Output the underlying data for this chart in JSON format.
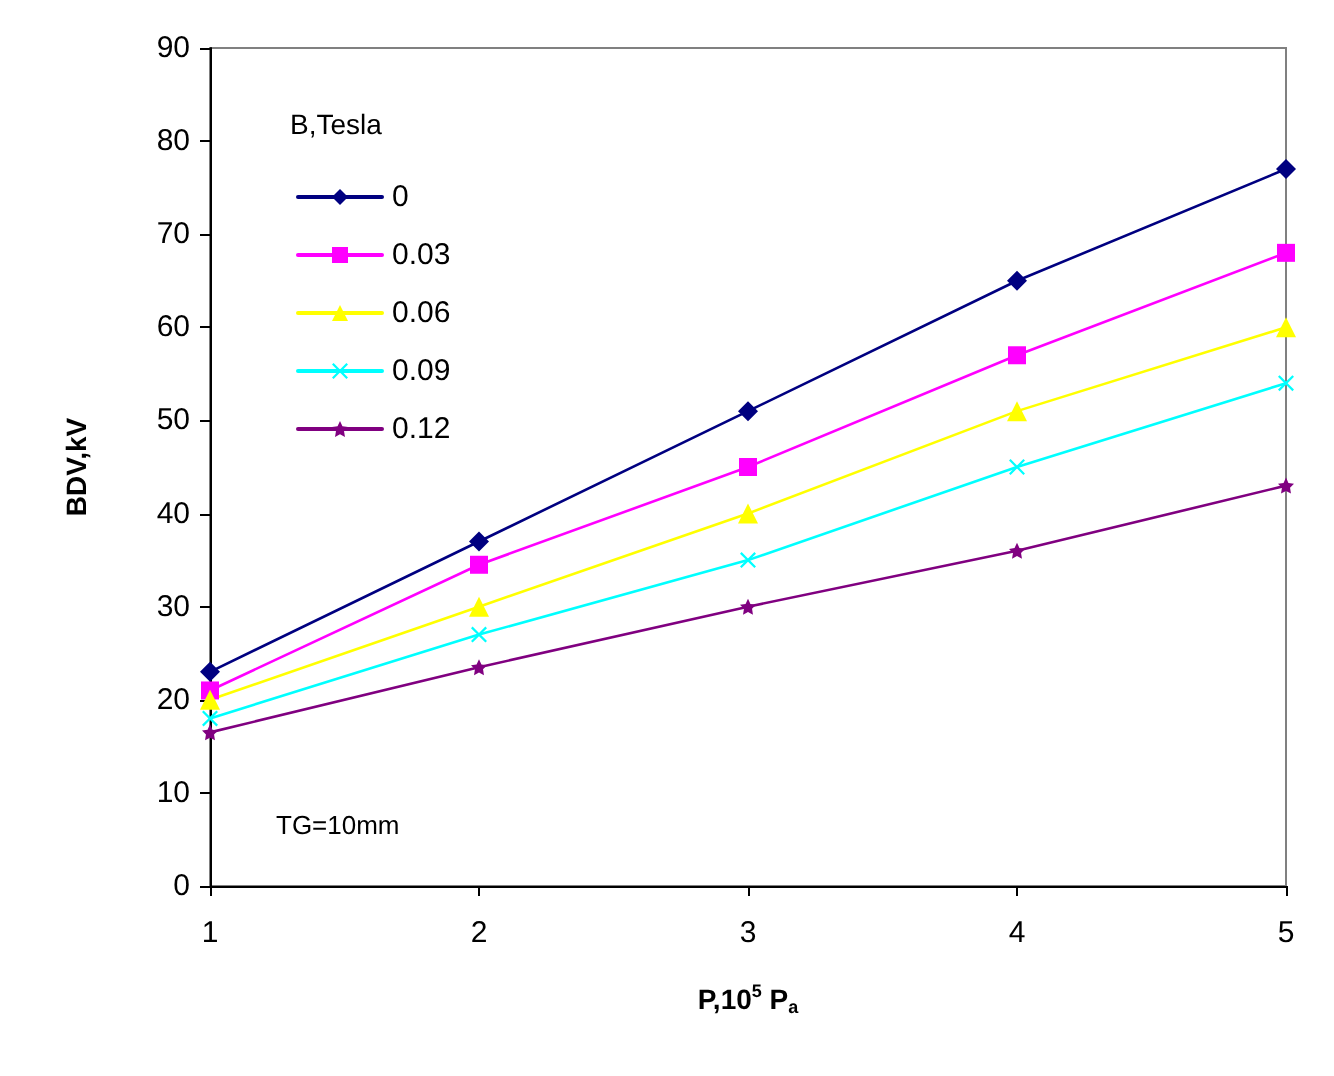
{
  "chart_data": {
    "type": "line",
    "xlabel": "P,10$^{5}$ P$_{a}$",
    "ylabel": "BDV,kV",
    "legend_title": "B,Tesla",
    "annotations": [
      "TG=10mm"
    ],
    "x": [
      1,
      2,
      3,
      4,
      5
    ],
    "xlim": [
      1,
      5
    ],
    "xticks": [
      1,
      2,
      3,
      4,
      5
    ],
    "ylim": [
      0,
      90
    ],
    "yticks": [
      0,
      10,
      20,
      30,
      40,
      50,
      60,
      70,
      80,
      90
    ],
    "grid": false,
    "legend": "top left",
    "series": [
      {
        "name": "0",
        "color": "#000080",
        "marker": "diamond",
        "values": [
          23,
          37,
          51,
          65,
          77
        ]
      },
      {
        "name": "0.03",
        "color": "#ff00ff",
        "marker": "square",
        "values": [
          21,
          34.5,
          45,
          57,
          68
        ]
      },
      {
        "name": "0.06",
        "color": "#ffff00",
        "marker": "triangle",
        "values": [
          20,
          30,
          40,
          51,
          60
        ]
      },
      {
        "name": "0.09",
        "color": "#00ffff",
        "marker": "cross",
        "values": [
          18,
          27,
          35,
          45,
          54
        ]
      },
      {
        "name": "0.12",
        "color": "#800080",
        "marker": "star",
        "values": [
          16.5,
          23.5,
          30,
          36,
          43
        ]
      }
    ]
  }
}
